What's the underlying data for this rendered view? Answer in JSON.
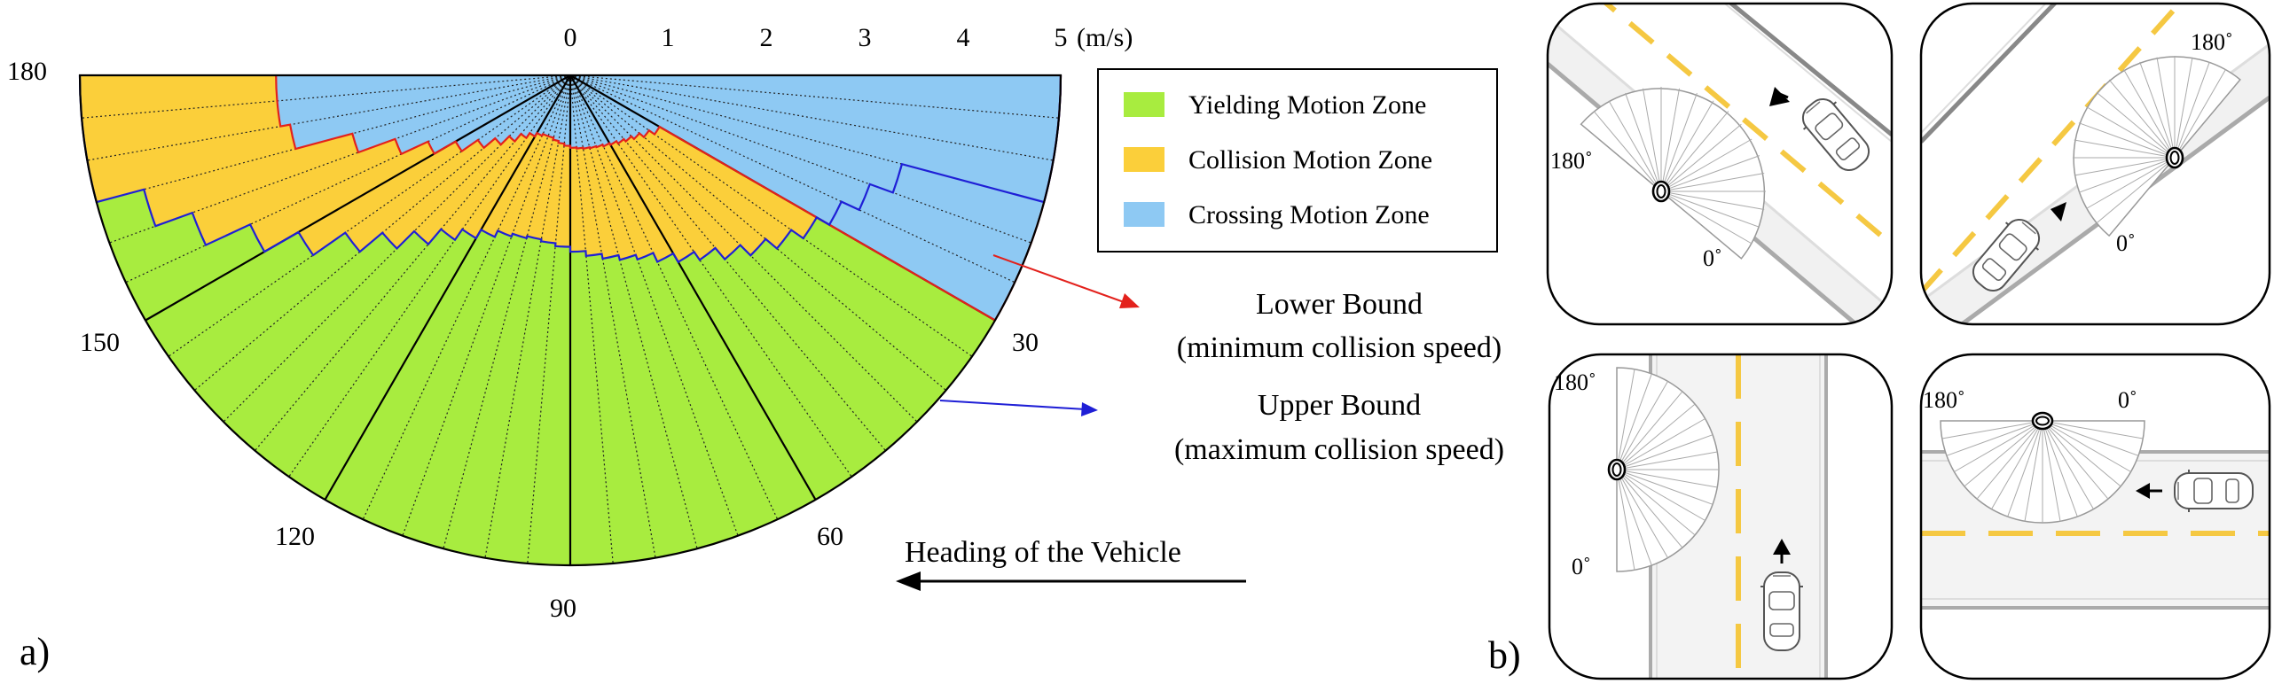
{
  "panel_a": {
    "label": "a)",
    "scale_ticks": [
      "0",
      "1",
      "2",
      "3",
      "4",
      "5"
    ],
    "unit": "(m/s)",
    "angle_labels": [
      "180",
      "150",
      "120",
      "90",
      "60",
      "30"
    ],
    "legend": {
      "items": [
        {
          "label": "Yielding Motion Zone",
          "color": "#a8ec3f"
        },
        {
          "label": "Collision Motion Zone",
          "color": "#fbcf3a"
        },
        {
          "label": "Crossing Motion Zone",
          "color": "#8ec9f3"
        }
      ]
    },
    "annotations": {
      "lower_bound": {
        "line1": "Lower Bound",
        "line2": "(minimum collision speed)",
        "color": "#e3211c"
      },
      "upper_bound": {
        "line1": "Upper Bound",
        "line2": "(maximum collision speed)",
        "color": "#1f1fd6"
      }
    },
    "heading_label": "Heading of the Vehicle"
  },
  "panel_b": {
    "label": "b)",
    "scenarios": [
      {
        "label_a": "180˚",
        "label_b": "0˚"
      },
      {
        "label_a": "180˚",
        "label_b": "0˚"
      },
      {
        "label_a": "180˚",
        "label_b": "0˚"
      },
      {
        "label_a": "180˚",
        "label_b": "0˚"
      }
    ]
  },
  "colors": {
    "yield": "#a8ec3f",
    "collide": "#fbcf3a",
    "cross": "#8ec9f3",
    "lower": "#e3211c",
    "upper": "#1f1fd6",
    "lane": "#f5c842"
  }
}
